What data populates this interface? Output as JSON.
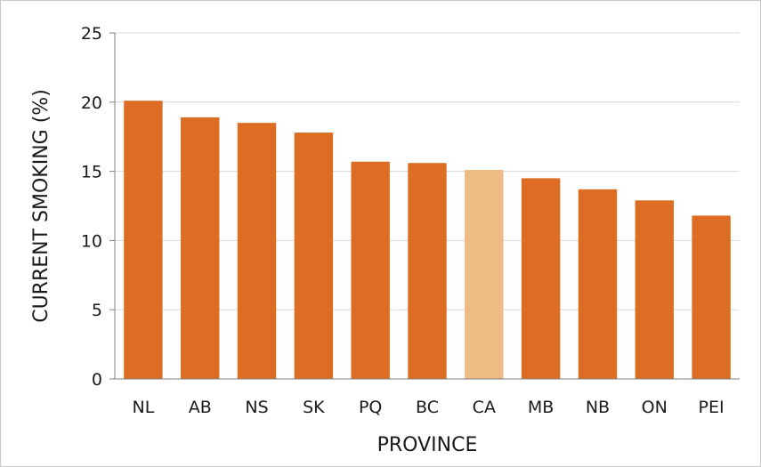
{
  "chart_data": {
    "type": "bar",
    "categories": [
      "NL",
      "AB",
      "NS",
      "SK",
      "PQ",
      "BC",
      "CA",
      "MB",
      "NB",
      "ON",
      "PEI"
    ],
    "values": [
      20.1,
      18.9,
      18.5,
      17.8,
      15.7,
      15.6,
      15.1,
      14.5,
      13.7,
      12.9,
      11.8
    ],
    "highlight": "CA",
    "title": "",
    "xlabel": "PROVINCE",
    "ylabel": "CURRENT SMOKING (%)",
    "ylim": [
      0,
      25
    ],
    "yticks": [
      0,
      5,
      10,
      15,
      20,
      25
    ],
    "grid": true,
    "legend": "none",
    "colors": {
      "bar": "#dc6d22",
      "highlight_bar": "#efbb84",
      "grid": "#d9d9d9",
      "axis": "#7f7f7f"
    }
  }
}
